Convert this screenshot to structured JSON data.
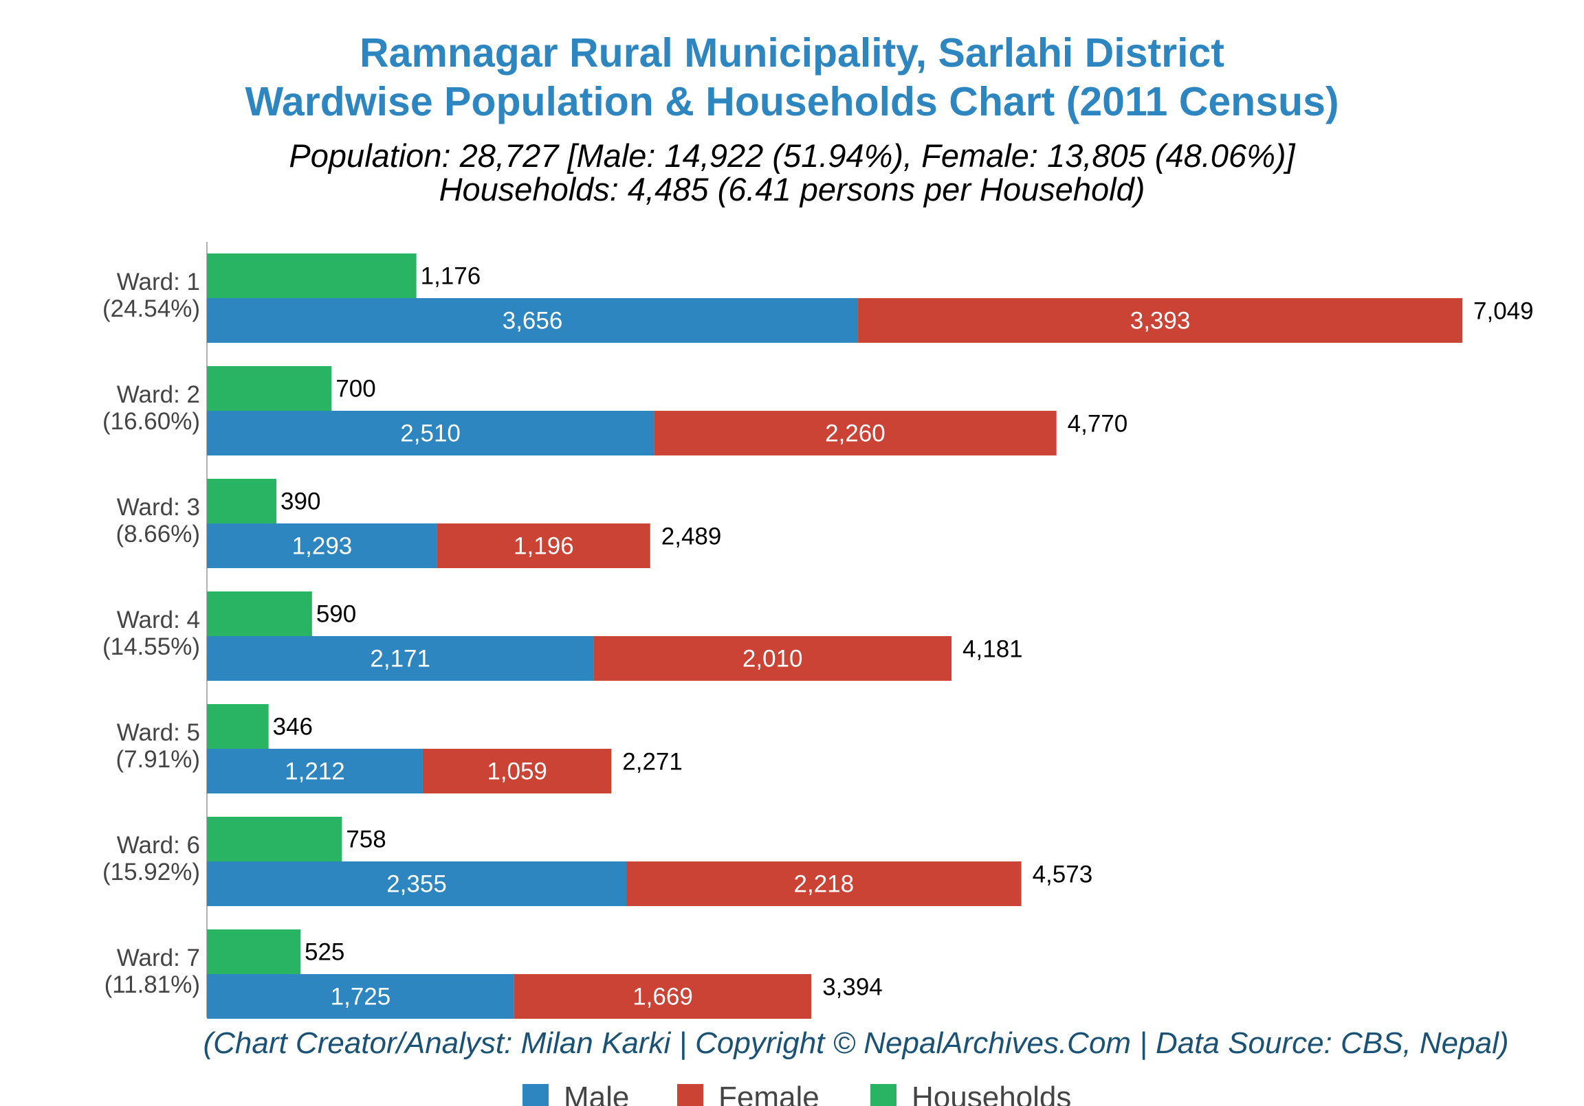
{
  "chart_data": {
    "type": "bar",
    "orientation": "horizontal",
    "stacked_population": true,
    "title": [
      "Ramnagar Rural Municipality, Sarlahi District",
      "Wardwise Population & Households Chart (2011 Census)"
    ],
    "subtitle": [
      "Population: 28,727 [Male: 14,922 (51.94%), Female: 13,805 (48.06%)]",
      "Households: 4,485 (6.41 persons per Household)"
    ],
    "credit": "(Chart Creator/Analyst: Milan Karki | Copyright © NepalArchives.Com | Data Source: CBS, Nepal)",
    "categories": [
      "Ward: 1",
      "Ward: 2",
      "Ward: 3",
      "Ward: 4",
      "Ward: 5",
      "Ward: 6",
      "Ward: 7"
    ],
    "category_shares": [
      "(24.54%)",
      "(16.60%)",
      "(8.66%)",
      "(14.55%)",
      "(7.91%)",
      "(15.92%)",
      "(11.81%)"
    ],
    "series": [
      {
        "name": "Male",
        "color": "#2e86c1",
        "values": [
          3656,
          2510,
          1293,
          2171,
          1212,
          2355,
          1725
        ]
      },
      {
        "name": "Female",
        "color": "#cb4335",
        "values": [
          3393,
          2260,
          1196,
          2010,
          1059,
          2218,
          1669
        ]
      },
      {
        "name": "Households",
        "color": "#28b463",
        "values": [
          1176,
          700,
          390,
          590,
          346,
          758,
          525
        ]
      }
    ],
    "totals": [
      7049,
      4770,
      2489,
      4181,
      2271,
      4573,
      3394
    ],
    "xlim": [
      0,
      7049
    ],
    "grid": false,
    "legend_position": "bottom",
    "title_color": "#2e86c1",
    "credit_color": "#1a5276"
  }
}
